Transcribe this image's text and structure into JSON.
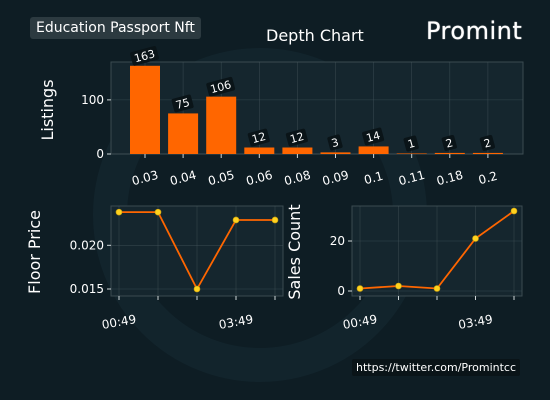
{
  "header": {
    "collection": "Education Passport Nft",
    "title": "Depth Chart",
    "brand": "Promint"
  },
  "footer": {
    "url": "https://twitter.com/Promintcc"
  },
  "colors": {
    "background": "#0e1d24",
    "panel": "#15262e",
    "bar": "#ff6600",
    "line": "#ff6600",
    "marker": "#ffd21e",
    "grid": "#4a5a60",
    "text": "#ffffff"
  },
  "chart_data": [
    {
      "type": "bar",
      "ylabel": "Listings",
      "categories": [
        "0.03",
        "0.04",
        "0.05",
        "0.06",
        "0.08",
        "0.09",
        "0.1",
        "0.11",
        "0.18",
        "0.2"
      ],
      "values": [
        163,
        75,
        106,
        12,
        12,
        3,
        14,
        1,
        2,
        2
      ],
      "yticks": [
        0,
        100
      ],
      "ylim": [
        0,
        170
      ],
      "grid": true
    },
    {
      "type": "line",
      "ylabel": "Floor Price",
      "x": [
        0,
        1,
        2,
        3,
        4
      ],
      "xticklabels": [
        "00:49",
        "",
        "",
        "03:49",
        ""
      ],
      "values": [
        0.0238,
        0.0238,
        0.015,
        0.0229,
        0.0229
      ],
      "yticks": [
        0.015,
        0.02
      ],
      "yticklabels": [
        "0.015",
        "0.020"
      ],
      "ylim": [
        0.0142,
        0.0245
      ],
      "grid": true
    },
    {
      "type": "line",
      "ylabel": "Sales Count",
      "x": [
        0,
        1,
        2,
        3,
        4
      ],
      "xticklabels": [
        "00:49",
        "",
        "",
        "03:49",
        ""
      ],
      "values": [
        1,
        2,
        1,
        21,
        32
      ],
      "yticks": [
        0,
        20
      ],
      "ylim": [
        -2,
        34
      ],
      "grid": true
    }
  ]
}
